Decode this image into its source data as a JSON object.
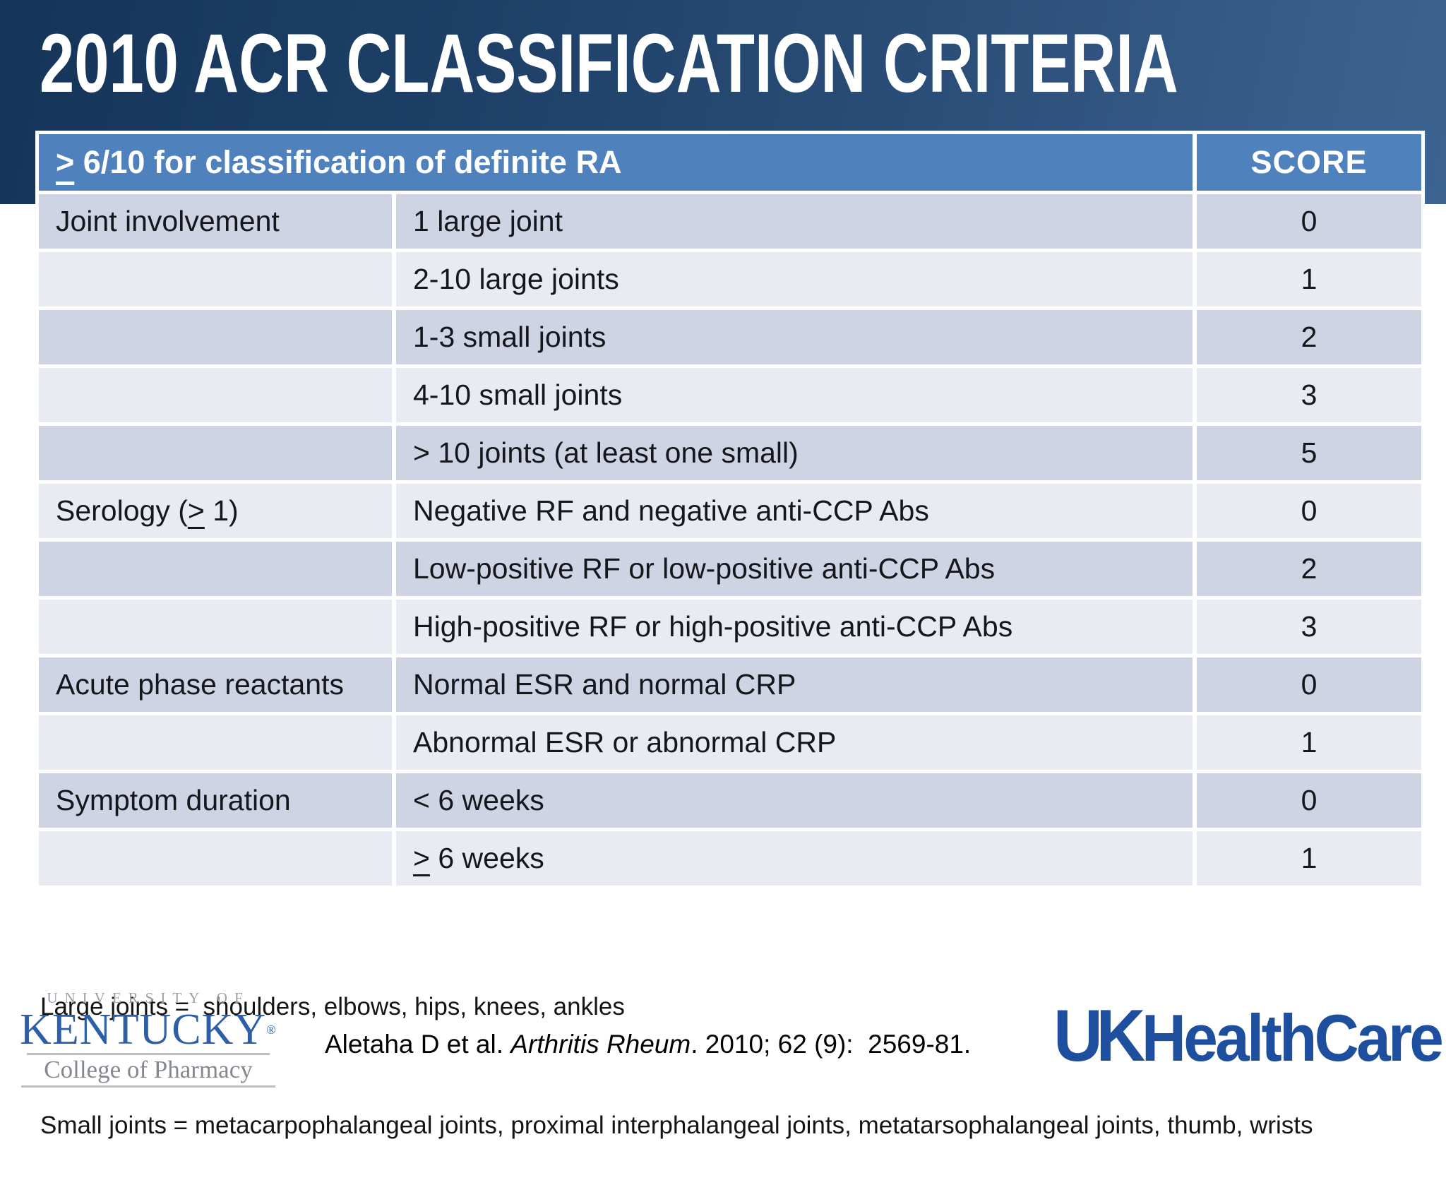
{
  "slide": {
    "title": "2010 ACR CLASSIFICATION CRITERIA"
  },
  "table": {
    "header": {
      "criteria_geq": ">",
      "criteria_rest": " 6/10 for classification of definite RA",
      "score_label": "SCORE"
    },
    "rows": [
      {
        "category": "Joint involvement",
        "criterion": "1 large joint",
        "score": "0"
      },
      {
        "category": "",
        "criterion": "2-10 large joints",
        "score": "1"
      },
      {
        "category": "",
        "criterion": "1-3 small joints",
        "score": "2"
      },
      {
        "category": "",
        "criterion": "4-10 small joints",
        "score": "3"
      },
      {
        "category": "",
        "criterion": "> 10 joints (at least one small)",
        "score": "5"
      },
      {
        "category_prefix": "Serology (",
        "category_geq": ">",
        "category_suffix": " 1)",
        "criterion": "Negative RF and negative anti-CCP Abs",
        "score": "0"
      },
      {
        "category": "",
        "criterion": "Low-positive RF or low-positive anti-CCP Abs",
        "score": "2"
      },
      {
        "category": "",
        "criterion": "High-positive RF or high-positive anti-CCP Abs",
        "score": "3"
      },
      {
        "category": "Acute phase reactants",
        "criterion": "Normal ESR and normal CRP",
        "score": "0"
      },
      {
        "category": "",
        "criterion": "Abnormal ESR or abnormal CRP",
        "score": "1"
      },
      {
        "category": "Symptom duration",
        "criterion": "< 6 weeks",
        "score": "0"
      },
      {
        "category": "",
        "criterion_geq": ">",
        "criterion_suffix": " 6 weeks",
        "score": "1"
      }
    ]
  },
  "notes": {
    "large_joints": "Large joints =  shoulders, elbows, hips, knees, ankles",
    "small_joints": "Small joints = metacarpophalangeal joints, proximal interphalangeal joints, metatarsophalangeal joints, thumb, wrists"
  },
  "citation": {
    "prefix": "Aletaha D et al. ",
    "journal": "Arthritis Rheum",
    "suffix": ". 2010; 62 (9):  2569-81."
  },
  "footer": {
    "uky_logo": {
      "line1": "UNIVERSITY OF",
      "line2": "KENTUCKY",
      "registered": "®",
      "line3": "College of Pharmacy"
    },
    "ukhc_logo": {
      "uk": "UK",
      "healthcare": "HealthCare"
    }
  },
  "colors": {
    "banner_dark": "#15345a",
    "banner_light": "#3d6491",
    "table_header_blue": "#4f81bd",
    "row_dark": "#cfd4e4",
    "row_light": "#e9ebf3",
    "uk_blue": "#1d4f9e",
    "kentucky_blue": "#2d5fa8"
  }
}
